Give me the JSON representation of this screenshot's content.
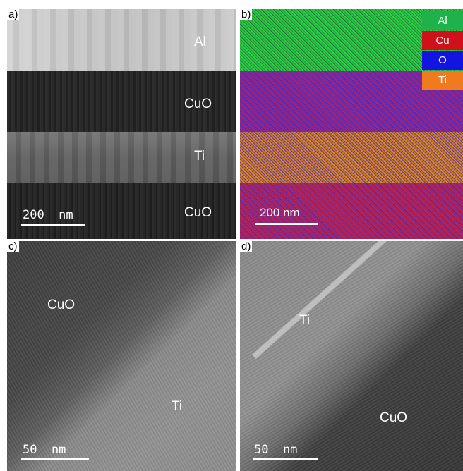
{
  "panels": {
    "a": {
      "label": "a)",
      "layers": [
        "Al",
        "CuO",
        "Ti",
        "CuO"
      ],
      "scale_bar": "200  nm"
    },
    "b": {
      "label": "b)",
      "scale_bar": "200 nm",
      "legend": [
        {
          "label": "Al",
          "color": "#1fb24a"
        },
        {
          "label": "Cu",
          "color": "#d0101a"
        },
        {
          "label": "O",
          "color": "#1414e0"
        },
        {
          "label": "Ti",
          "color": "#f07a1e"
        }
      ]
    },
    "c": {
      "label": "c)",
      "regions": [
        "CuO",
        "Ti"
      ],
      "scale_bar": "50  nm"
    },
    "d": {
      "label": "d)",
      "regions": [
        "Ti",
        "CuO"
      ],
      "scale_bar": "50  nm"
    }
  }
}
